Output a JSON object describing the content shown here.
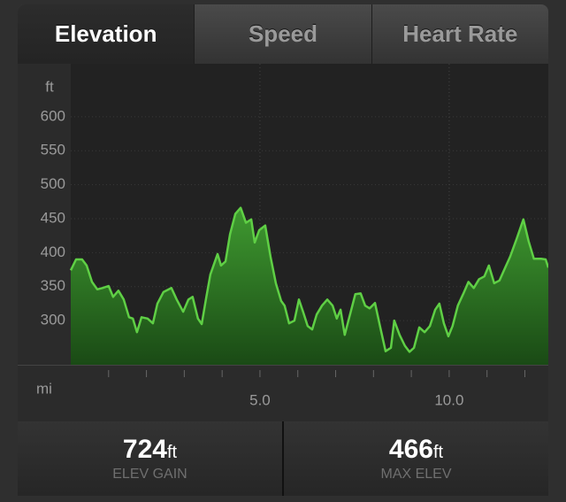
{
  "tabs": [
    {
      "label": "Elevation"
    },
    {
      "label": "Speed"
    },
    {
      "label": "Heart Rate"
    }
  ],
  "selected_tab": 0,
  "chart_data": {
    "type": "area",
    "y_unit": "ft",
    "x_unit": "mi",
    "x": [
      0,
      0.14,
      0.3,
      0.42,
      0.56,
      0.7,
      0.84,
      1.0,
      1.12,
      1.26,
      1.4,
      1.54,
      1.64,
      1.75,
      1.87,
      2.03,
      2.17,
      2.29,
      2.45,
      2.66,
      2.8,
      2.97,
      3.11,
      3.22,
      3.36,
      3.46,
      3.57,
      3.69,
      3.88,
      3.97,
      4.09,
      4.21,
      4.35,
      4.49,
      4.63,
      4.77,
      4.86,
      4.98,
      5.14,
      5.28,
      5.42,
      5.56,
      5.65,
      5.77,
      5.91,
      6.03,
      6.14,
      6.26,
      6.38,
      6.5,
      6.64,
      6.78,
      6.92,
      7.03,
      7.13,
      7.24,
      7.38,
      7.52,
      7.66,
      7.78,
      7.9,
      8.04,
      8.18,
      8.32,
      8.46,
      8.55,
      8.69,
      8.83,
      8.95,
      9.07,
      9.21,
      9.35,
      9.49,
      9.63,
      9.74,
      9.86,
      9.98,
      10.09,
      10.23,
      10.37,
      10.51,
      10.65,
      10.79,
      10.93,
      11.05,
      11.19,
      11.33,
      11.45,
      11.61,
      11.78,
      11.96,
      12.1,
      12.24,
      12.43,
      12.55,
      12.62
    ],
    "series": [
      {
        "name": "Elevation",
        "color": "#5fcf45",
        "values": [
          374,
          390,
          390,
          381,
          357,
          346,
          348,
          351,
          335,
          344,
          331,
          305,
          303,
          283,
          305,
          303,
          296,
          325,
          342,
          348,
          331,
          313,
          331,
          335,
          303,
          295,
          331,
          368,
          398,
          381,
          387,
          427,
          457,
          466,
          444,
          449,
          415,
          433,
          440,
          394,
          355,
          329,
          322,
          296,
          300,
          331,
          313,
          292,
          287,
          309,
          322,
          331,
          322,
          303,
          316,
          279,
          309,
          339,
          340,
          322,
          318,
          326,
          290,
          255,
          260,
          300,
          279,
          263,
          254,
          260,
          290,
          283,
          292,
          316,
          325,
          296,
          277,
          292,
          322,
          339,
          357,
          348,
          361,
          365,
          381,
          355,
          359,
          374,
          394,
          420,
          449,
          417,
          391,
          391,
          390,
          378
        ]
      }
    ],
    "xlim": [
      0,
      12.62
    ],
    "ylim": [
      235,
      678
    ],
    "yticks": [
      300,
      350,
      400,
      450,
      500,
      550,
      600
    ],
    "xticks": [
      {
        "value": 5,
        "label": "5.0"
      },
      {
        "value": 10,
        "label": "10.0"
      }
    ],
    "xminor_ticks": [
      1,
      2,
      3,
      4,
      5,
      6,
      7,
      8,
      9,
      10,
      11,
      12
    ],
    "grid": true
  },
  "stats": [
    {
      "value": 724,
      "unit": "ft",
      "label": "ELEV GAIN"
    },
    {
      "value": 466,
      "unit": "ft",
      "label": "MAX ELEV"
    }
  ]
}
